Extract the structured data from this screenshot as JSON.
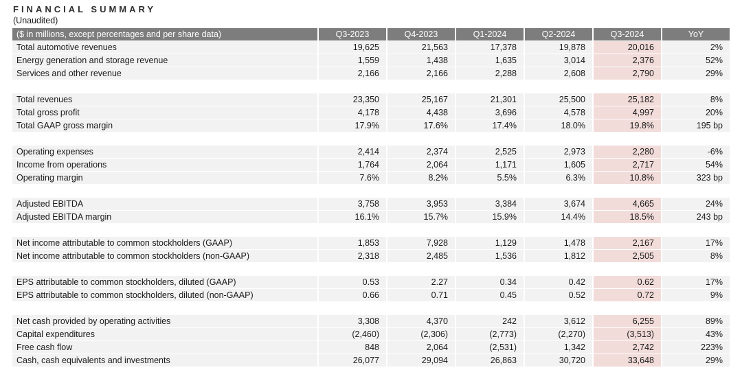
{
  "title": "FINANCIAL SUMMARY",
  "subtitle": "(Unaudited)",
  "colors": {
    "header_bg": "#7d7d7d",
    "header_text": "#ffffff",
    "row_bg": "#f2f2f2",
    "highlight_bg": "#f1dcda",
    "body_text": "#1a1a1a"
  },
  "table": {
    "caption": "($ in millions, except percentages and per share data)",
    "columns": [
      "Q3-2023",
      "Q4-2023",
      "Q1-2024",
      "Q2-2024",
      "Q3-2024",
      "YoY"
    ],
    "highlight_column_index": 4,
    "groups": [
      {
        "rows": [
          {
            "label": "Total automotive revenues",
            "values": [
              "19,625",
              "21,563",
              "17,378",
              "19,878",
              "20,016",
              "2%"
            ]
          },
          {
            "label": "Energy generation and storage revenue",
            "values": [
              "1,559",
              "1,438",
              "1,635",
              "3,014",
              "2,376",
              "52%"
            ]
          },
          {
            "label": "Services and other revenue",
            "values": [
              "2,166",
              "2,166",
              "2,288",
              "2,608",
              "2,790",
              "29%"
            ]
          }
        ]
      },
      {
        "rows": [
          {
            "label": "Total revenues",
            "values": [
              "23,350",
              "25,167",
              "21,301",
              "25,500",
              "25,182",
              "8%"
            ]
          },
          {
            "label": "Total gross profit",
            "values": [
              "4,178",
              "4,438",
              "3,696",
              "4,578",
              "4,997",
              "20%"
            ]
          },
          {
            "label": "Total GAAP gross margin",
            "values": [
              "17.9%",
              "17.6%",
              "17.4%",
              "18.0%",
              "19.8%",
              "195 bp"
            ]
          }
        ]
      },
      {
        "rows": [
          {
            "label": "Operating expenses",
            "values": [
              "2,414",
              "2,374",
              "2,525",
              "2,973",
              "2,280",
              "-6%"
            ]
          },
          {
            "label": "Income from operations",
            "values": [
              "1,764",
              "2,064",
              "1,171",
              "1,605",
              "2,717",
              "54%"
            ]
          },
          {
            "label": "Operating margin",
            "values": [
              "7.6%",
              "8.2%",
              "5.5%",
              "6.3%",
              "10.8%",
              "323 bp"
            ]
          }
        ]
      },
      {
        "rows": [
          {
            "label": "Adjusted EBITDA",
            "values": [
              "3,758",
              "3,953",
              "3,384",
              "3,674",
              "4,665",
              "24%"
            ]
          },
          {
            "label": "Adjusted EBITDA margin",
            "values": [
              "16.1%",
              "15.7%",
              "15.9%",
              "14.4%",
              "18.5%",
              "243 bp"
            ]
          }
        ]
      },
      {
        "rows": [
          {
            "label": "Net income attributable to common stockholders (GAAP)",
            "values": [
              "1,853",
              "7,928",
              "1,129",
              "1,478",
              "2,167",
              "17%"
            ]
          },
          {
            "label": "Net income attributable to common stockholders (non-GAAP)",
            "values": [
              "2,318",
              "2,485",
              "1,536",
              "1,812",
              "2,505",
              "8%"
            ]
          }
        ]
      },
      {
        "rows": [
          {
            "label": "EPS attributable to common stockholders, diluted (GAAP)",
            "values": [
              "0.53",
              "2.27",
              "0.34",
              "0.42",
              "0.62",
              "17%"
            ]
          },
          {
            "label": "EPS attributable to common stockholders, diluted (non-GAAP)",
            "values": [
              "0.66",
              "0.71",
              "0.45",
              "0.52",
              "0.72",
              "9%"
            ]
          }
        ]
      },
      {
        "rows": [
          {
            "label": "Net cash provided by operating activities",
            "values": [
              "3,308",
              "4,370",
              "242",
              "3,612",
              "6,255",
              "89%"
            ]
          },
          {
            "label": "Capital expenditures",
            "values": [
              "(2,460)",
              "(2,306)",
              "(2,773)",
              "(2,270)",
              "(3,513)",
              "43%"
            ]
          },
          {
            "label": "Free cash flow",
            "values": [
              "848",
              "2,064",
              "(2,531)",
              "1,342",
              "2,742",
              "223%"
            ]
          },
          {
            "label": "Cash, cash equivalents and investments",
            "values": [
              "26,077",
              "29,094",
              "26,863",
              "30,720",
              "33,648",
              "29%"
            ]
          }
        ]
      }
    ]
  }
}
